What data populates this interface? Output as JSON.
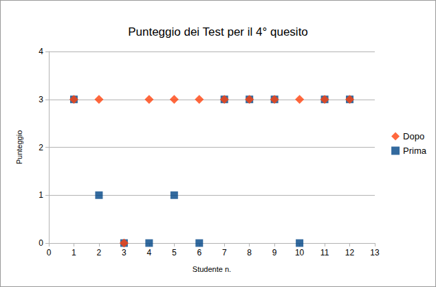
{
  "chart_data": {
    "type": "scatter",
    "title": "Punteggio dei Test per il 4° quesito",
    "x_label": "Studente n.",
    "y_label": "Punteggio",
    "x": [
      1,
      2,
      3,
      4,
      5,
      6,
      7,
      8,
      9,
      10,
      11,
      12
    ],
    "series": [
      {
        "name": "Dopo",
        "color": "#ff420e",
        "marker": "diamond",
        "values": [
          3,
          3,
          0,
          3,
          3,
          3,
          3,
          3,
          3,
          3,
          3,
          3
        ]
      },
      {
        "name": "Prima",
        "color": "#004586",
        "marker": "square",
        "values": [
          3,
          1,
          0,
          0,
          1,
          0,
          3,
          3,
          3,
          0,
          3,
          3
        ]
      }
    ],
    "xlim": [
      0,
      13
    ],
    "xticks": [
      0,
      1,
      2,
      3,
      4,
      5,
      6,
      7,
      8,
      9,
      10,
      11,
      12,
      13
    ],
    "ylim": [
      0,
      4
    ],
    "yticks": [
      0,
      1,
      2,
      3,
      4
    ],
    "grid": "y",
    "legend": "right"
  }
}
